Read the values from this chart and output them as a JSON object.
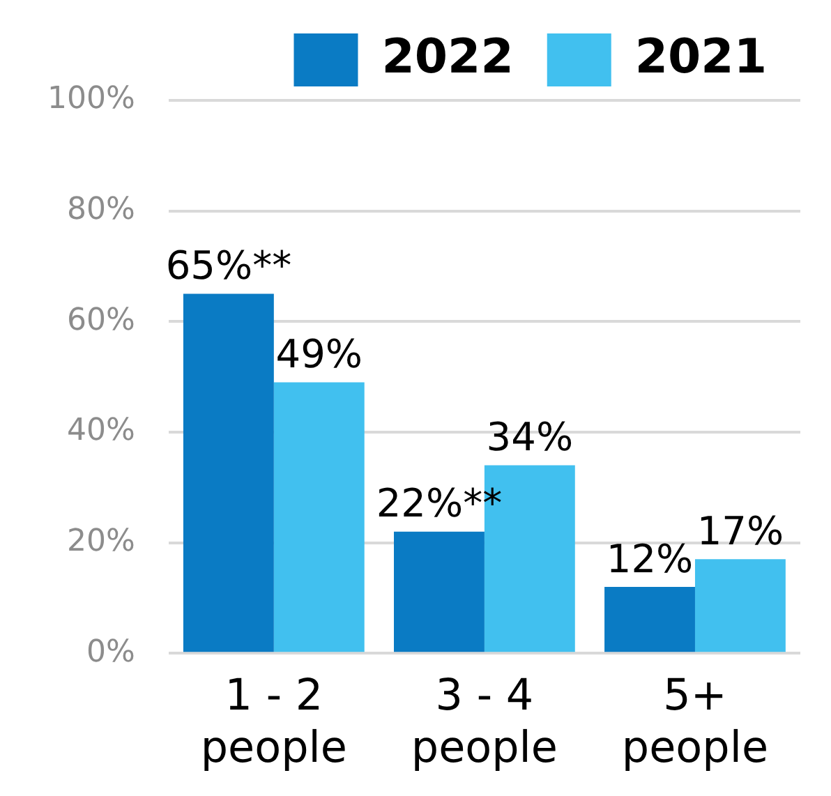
{
  "chart_data": {
    "type": "bar",
    "categories": [
      "1 - 2 people",
      "3 - 4 people",
      "5+ people"
    ],
    "series": [
      {
        "name": "2022",
        "color": "#0a7bc4",
        "values": [
          65,
          22,
          12
        ],
        "value_labels": [
          "65%**",
          "22%**",
          "12%"
        ]
      },
      {
        "name": "2021",
        "color": "#41c0ef",
        "values": [
          49,
          34,
          17
        ],
        "value_labels": [
          "49%",
          "34%",
          "17%"
        ]
      }
    ],
    "ylim": [
      0,
      100
    ],
    "yticks": [
      {
        "value": 0,
        "label": "0%"
      },
      {
        "value": 20,
        "label": "20%"
      },
      {
        "value": 40,
        "label": "40%"
      },
      {
        "value": 60,
        "label": "60%"
      },
      {
        "value": 80,
        "label": "80%"
      },
      {
        "value": 100,
        "label": "100%"
      }
    ],
    "grid": "y",
    "legend": "top right"
  }
}
